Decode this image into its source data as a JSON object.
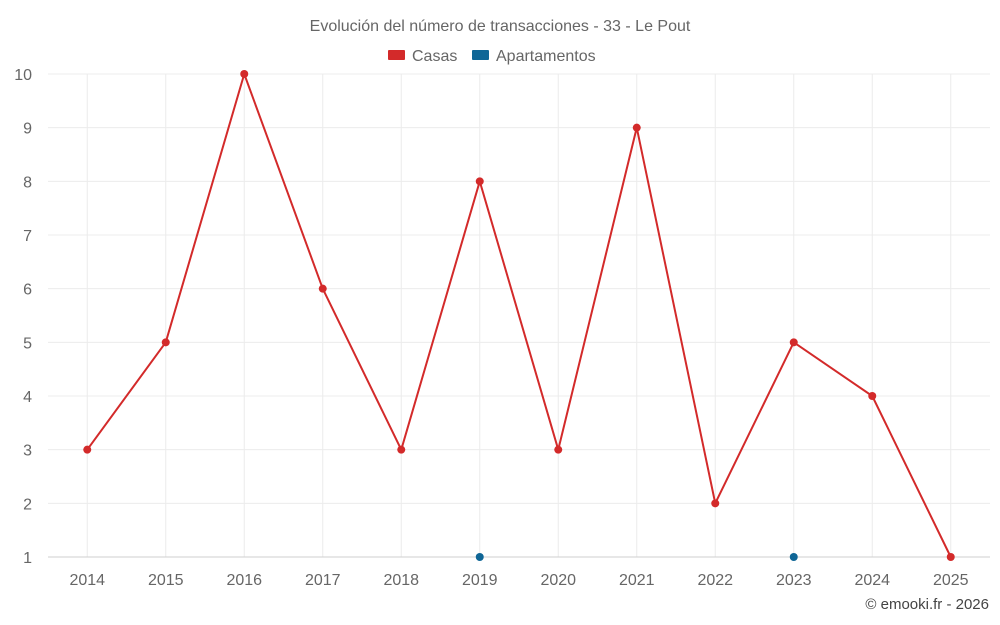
{
  "chart_data": {
    "type": "line",
    "title": "Evolución del número de transacciones - 33 - Le Pout",
    "categories": [
      "2014",
      "2015",
      "2016",
      "2017",
      "2018",
      "2019",
      "2020",
      "2021",
      "2022",
      "2023",
      "2024",
      "2025"
    ],
    "ylim": [
      1,
      10
    ],
    "yticks": [
      1,
      2,
      3,
      4,
      5,
      6,
      7,
      8,
      9,
      10
    ],
    "grid": true,
    "legend_position": "top-center",
    "series": [
      {
        "name": "Casas",
        "color": "#d32a2a",
        "values": [
          3,
          5,
          10,
          6,
          3,
          8,
          3,
          9,
          2,
          5,
          4,
          1
        ],
        "connected": true
      },
      {
        "name": "Apartamentos",
        "color": "#0f6696",
        "values": [
          null,
          null,
          null,
          null,
          null,
          1,
          null,
          null,
          null,
          1,
          null,
          null
        ],
        "connected": false
      }
    ],
    "credit": "© emooki.fr - 2026"
  }
}
